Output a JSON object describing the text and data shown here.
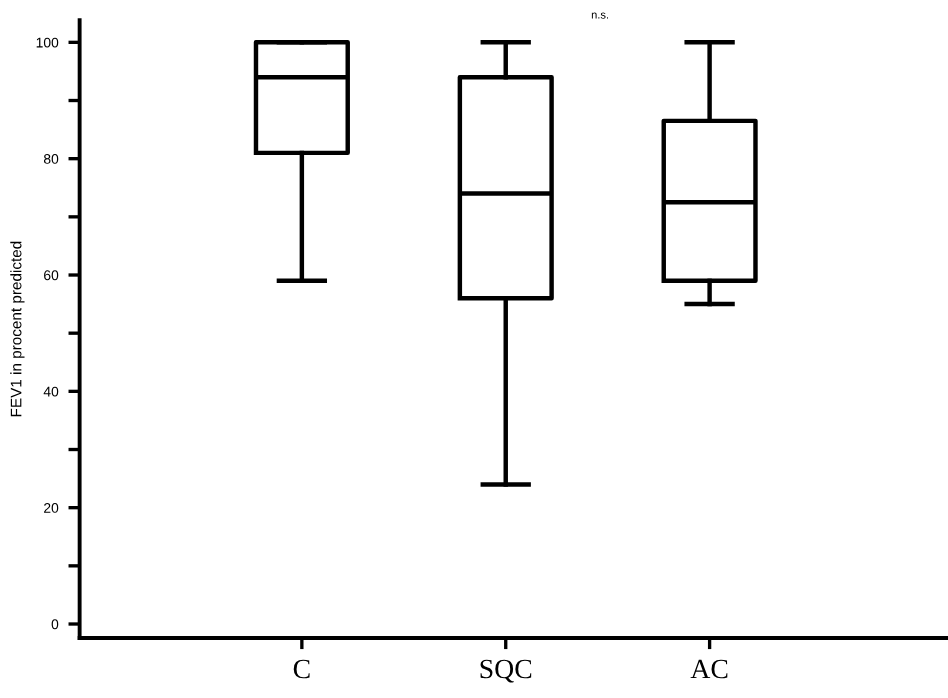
{
  "chart_data": {
    "type": "box",
    "ylabel": "FEV1 in procent predicted",
    "categories": [
      "C",
      "SQC",
      "AC"
    ],
    "boxes": [
      {
        "low": 59,
        "q1": 81,
        "median": 94,
        "q3": 100,
        "high": 100
      },
      {
        "low": 24,
        "q1": 56,
        "median": 74,
        "q3": 94,
        "high": 100
      },
      {
        "low": 55,
        "q1": 59,
        "median": 72.5,
        "q3": 86.5,
        "high": 100
      }
    ],
    "ylim": [
      -2.4,
      103.8
    ],
    "yticks": [
      0,
      {
        "value": 10,
        "label": null
      },
      20,
      {
        "value": 30,
        "label": null
      },
      40,
      {
        "value": 50,
        "label": null
      },
      60,
      {
        "value": 70,
        "label": null
      },
      80,
      {
        "value": 90,
        "label": null
      },
      100
    ],
    "annotations": [
      "n.s."
    ],
    "grid": false
  }
}
